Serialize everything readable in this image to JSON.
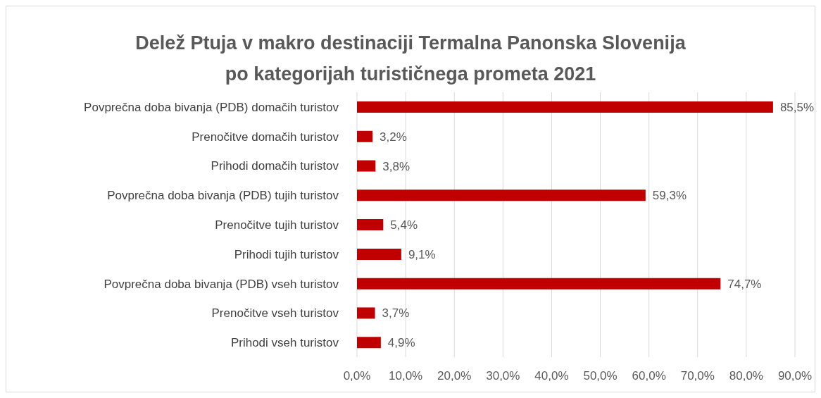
{
  "chart_data": {
    "type": "bar",
    "orientation": "horizontal",
    "title": "Delež Ptuja v makro destinaciji Termalna Panonska Slovenija\npo kategorijah turističnega prometa 2021",
    "categories": [
      "Povprečna doba bivanja (PDB) domačih turistov",
      "Prenočitve domačih turistov",
      "Prihodi domačih turistov",
      "Povprečna doba bivanja (PDB) tujih turistov",
      "Prenočitve tujih turistov",
      "Prihodi tujih turistov",
      "Povprečna doba bivanja (PDB) vseh turistov",
      "Prenočitve vseh turistov",
      "Prihodi vseh turistov"
    ],
    "values": [
      85.5,
      3.2,
      3.8,
      59.3,
      5.4,
      9.1,
      74.7,
      3.7,
      4.9
    ],
    "value_labels": [
      "85,5%",
      "3,2%",
      "3,8%",
      "59,3%",
      "5,4%",
      "9,1%",
      "74,7%",
      "3,7%",
      "4,9%"
    ],
    "color": "#c00000",
    "xlim": [
      0,
      90
    ],
    "xticks": [
      {
        "value": 0,
        "label": "0,0%"
      },
      {
        "value": 10,
        "label": "10,0%"
      },
      {
        "value": 20,
        "label": "20,0%"
      },
      {
        "value": 30,
        "label": "30,0%"
      },
      {
        "value": 40,
        "label": "40,0%"
      },
      {
        "value": 50,
        "label": "50,0%"
      },
      {
        "value": 60,
        "label": "60,0%"
      },
      {
        "value": 70,
        "label": "70,0%"
      },
      {
        "value": 80,
        "label": "80,0%"
      },
      {
        "value": 90,
        "label": "90,0%"
      }
    ],
    "grid": "x"
  }
}
